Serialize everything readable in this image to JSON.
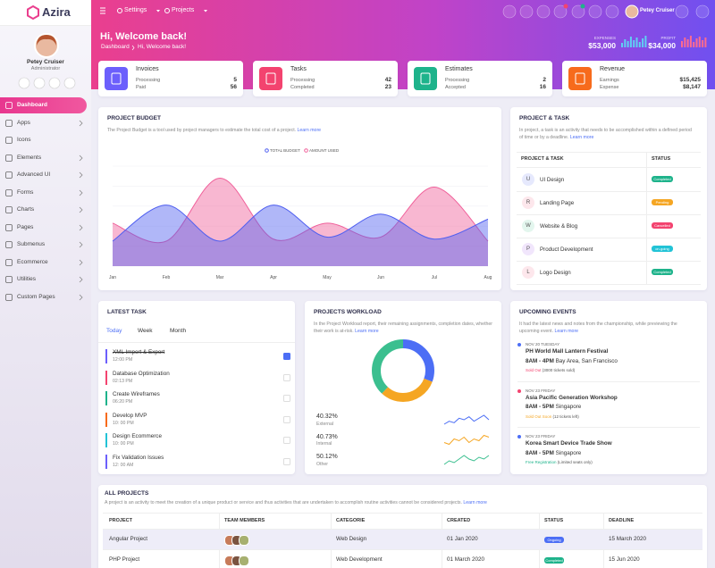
{
  "sidebar": {
    "logo": "Azira",
    "user_name": "Petey Cruiser",
    "user_role": "Administrator",
    "menu": [
      {
        "label": "Dashboard",
        "active": true,
        "submenu": false
      },
      {
        "label": "Apps",
        "active": false,
        "submenu": true
      },
      {
        "label": "Icons",
        "active": false,
        "submenu": false
      },
      {
        "label": "Elements",
        "active": false,
        "submenu": true
      },
      {
        "label": "Advanced UI",
        "active": false,
        "submenu": true
      },
      {
        "label": "Forms",
        "active": false,
        "submenu": true
      },
      {
        "label": "Charts",
        "active": false,
        "submenu": true
      },
      {
        "label": "Pages",
        "active": false,
        "submenu": true
      },
      {
        "label": "Submenus",
        "active": false,
        "submenu": true
      },
      {
        "label": "Ecommerce",
        "active": false,
        "submenu": true
      },
      {
        "label": "Utilities",
        "active": false,
        "submenu": true
      },
      {
        "label": "Custom Pages",
        "active": false,
        "submenu": true
      }
    ]
  },
  "header": {
    "nav": [
      "Settings",
      "Projects"
    ],
    "user": "Petey Cruiser"
  },
  "banner": {
    "title": "Hi, Welcome back!",
    "breadcrumb": [
      "Dashboard",
      "Hi, Welcome back!"
    ],
    "stats": [
      {
        "label": "EXPENSES",
        "value": "$53,000",
        "color": "#5fd0f3",
        "bars": [
          5,
          9,
          7,
          12,
          8,
          11,
          6,
          10,
          13
        ]
      },
      {
        "label": "PROFIT",
        "value": "$34,000",
        "color": "#ff6b8f",
        "bars": [
          7,
          11,
          9,
          13,
          6,
          10,
          12,
          8,
          11
        ]
      }
    ]
  },
  "cards": [
    {
      "title": "Invoices",
      "color": "#6c5ffc",
      "rows": [
        {
          "label": "Processing",
          "value": "5"
        },
        {
          "label": "Paid",
          "value": "56"
        }
      ]
    },
    {
      "title": "Tasks",
      "color": "#f3436f",
      "rows": [
        {
          "label": "Processing",
          "value": "42"
        },
        {
          "label": "Completed",
          "value": "23"
        }
      ]
    },
    {
      "title": "Estimates",
      "color": "#1eb38b",
      "rows": [
        {
          "label": "Processing",
          "value": "2"
        },
        {
          "label": "Accepted",
          "value": "16"
        }
      ]
    },
    {
      "title": "Revenue",
      "color": "#f76b1c",
      "rows": [
        {
          "label": "Earnings",
          "value": "$15,425"
        },
        {
          "label": "Expense",
          "value": "$8,147"
        }
      ]
    }
  ],
  "budget": {
    "title": "PROJECT BUDGET",
    "description": "The Project Budget is a tool used by project managers to estimate the total cost of a project.",
    "link": "Learn more",
    "chart_data": {
      "type": "area",
      "categories": [
        "Jan",
        "Feb",
        "Mar",
        "Apr",
        "May",
        "Jun",
        "Jul",
        "Aug"
      ],
      "ylim": [
        0,
        100
      ],
      "series": [
        {
          "name": "TOTAL BUDGET",
          "color": "#4f5ff0",
          "values": [
            25,
            61,
            25,
            61,
            29,
            52,
            27,
            47
          ]
        },
        {
          "name": "AMOUNT USED",
          "color": "#f0609a",
          "values": [
            43,
            25,
            88,
            27,
            43,
            29,
            79,
            25
          ]
        }
      ]
    }
  },
  "project_task": {
    "title": "PROJECT & TASK",
    "description": "In project, a task is an activity that needs to be accomplished within a defined period of time or by a deadline.",
    "link": "Learn more",
    "columns": [
      "PROJECT & TASK",
      "STATUS"
    ],
    "rows": [
      {
        "initial": "U",
        "name": "UI Design",
        "status": "Completed",
        "color": "#1eb38b",
        "tint": "#e6e9fd"
      },
      {
        "initial": "R",
        "name": "Landing Page",
        "status": "Pending",
        "color": "#f5a623",
        "tint": "#fde7ec"
      },
      {
        "initial": "W",
        "name": "Website & Blog",
        "status": "Cancelled",
        "color": "#f3436f",
        "tint": "#e3f6ee"
      },
      {
        "initial": "P",
        "name": "Product Development",
        "status": "on-going",
        "color": "#22c3d6",
        "tint": "#f1e6fc"
      },
      {
        "initial": "L",
        "name": "Logo Design",
        "status": "Completed",
        "color": "#1eb38b",
        "tint": "#fde7ec"
      }
    ]
  },
  "latest_task": {
    "title": "LATEST TASK",
    "tabs": [
      "Today",
      "Week",
      "Month"
    ],
    "items": [
      {
        "name": "XML Import & Export",
        "time": "12:00 PM",
        "color": "#6c5ffc",
        "done": true
      },
      {
        "name": "Database Optimization",
        "time": "02:13 PM",
        "color": "#f3436f",
        "done": false
      },
      {
        "name": "Create Wireframes",
        "time": "06:20 PM",
        "color": "#1eb38b",
        "done": false
      },
      {
        "name": "Develop MVP",
        "time": "10: 00 PM",
        "color": "#f76b1c",
        "done": false
      },
      {
        "name": "Design Ecommerce",
        "time": "10: 00 PM",
        "color": "#22c3d6",
        "done": false
      },
      {
        "name": "Fix Validation Issues",
        "time": "12: 00 AM",
        "color": "#6c5ffc",
        "done": false
      }
    ]
  },
  "workload": {
    "title": "PROJECTS WORKLOAD",
    "description": "In the Project Workload report, their remaining assignments, completion dates, whether their work is at-risk.",
    "link": "Learn more",
    "chart_data": {
      "type": "donut",
      "categories": [
        "External",
        "Internal",
        "Other"
      ],
      "values": [
        40.32,
        40.73,
        50.12
      ],
      "value_labels": [
        "40.32%",
        "40.73%",
        "50.12%"
      ],
      "colors": [
        "#4c6ef5",
        "#f5a623",
        "#3bbf8f"
      ],
      "trends": [
        [
          4,
          6,
          5,
          8,
          7,
          9,
          6,
          8,
          10,
          7
        ],
        [
          5,
          4,
          7,
          6,
          8,
          5,
          7,
          6,
          9,
          8
        ],
        [
          3,
          5,
          4,
          6,
          8,
          6,
          5,
          7,
          6,
          8
        ]
      ]
    }
  },
  "events": {
    "title": "UPCOMING EVENTS",
    "description": "It had the latest news and notes from the championship, while previewing the upcoming event.",
    "link": "Learn more",
    "items": [
      {
        "date": "NOV 20 TUESDAY",
        "name": "PH World Mall Lantern Festival",
        "time": "8AM - 4PM",
        "place": "Bay Area, San Francisco",
        "status": "Sold Out",
        "note": "(3000 tickets sold)",
        "color": "#4c6ef5",
        "status_color": "#f3436f"
      },
      {
        "date": "NOV 23 FRIDAY",
        "name": "Asia Pacific Generation Workshop",
        "time": "8AM - 5PM",
        "place": "Singapore",
        "status": "Sold Out Soon",
        "note": "(12 tickets left)",
        "color": "#f3436f",
        "status_color": "#f5a623"
      },
      {
        "date": "NOV 23 FRIDAY",
        "name": "Korea Smart Device Trade Show",
        "time": "8AM - 5PM",
        "place": "Singapore",
        "status": "Free Registration",
        "note": "(Limited seats only)",
        "color": "#4c6ef5",
        "status_color": "#1eb38b"
      }
    ]
  },
  "projects": {
    "title": "ALL PROJECTS",
    "description": "A project is an activity to meet the creation of a unique product or service and thus activities that are undertaken to accomplish routine activities cannot be considered projects.",
    "link": "Learn more",
    "columns": [
      "PROJECT",
      "TEAM MEMBERS",
      "CATEGORIE",
      "CREATED",
      "STATUS",
      "DEADLINE"
    ],
    "rows": [
      {
        "project": "Angular Project",
        "category": "Web Design",
        "created": "01 Jan 2020",
        "status": "Ongoing",
        "deadline": "15 March 2020",
        "status_color": "#4c6ef5"
      },
      {
        "project": "PHP Project",
        "category": "Web Development",
        "created": "01 March 2020",
        "status": "Completed",
        "deadline": "15 Jun 2020",
        "status_color": "#1eb38b"
      }
    ]
  }
}
